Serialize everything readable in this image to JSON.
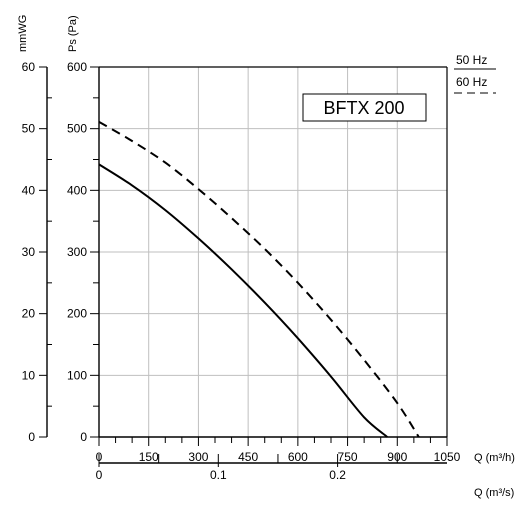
{
  "chart_data": {
    "type": "line",
    "model": "BFTX 200",
    "xlabel": "Q (m³/h)",
    "ylabel": "Ps (Pa)",
    "ylabel_secondary": "mmWG",
    "xlabel_secondary": "Q (m³/s)",
    "xlim": [
      0,
      1050
    ],
    "ylim": [
      0,
      600
    ],
    "ylim_secondary": [
      0,
      60
    ],
    "xlim_secondary": [
      0,
      0.2917
    ],
    "x_ticks": [
      "0",
      "150",
      "300",
      "450",
      "600",
      "750",
      "900",
      "1050"
    ],
    "y_ticks": [
      "0",
      "100",
      "200",
      "300",
      "400",
      "500",
      "600"
    ],
    "y_ticks_secondary": [
      "0",
      "10",
      "20",
      "30",
      "40",
      "50",
      "60"
    ],
    "x_ticks_secondary": [
      "0",
      "0.1",
      "0.2"
    ],
    "grid": true,
    "legend_position": "top-right",
    "series": [
      {
        "name": "50 Hz",
        "style": "solid",
        "x": [
          0,
          100,
          200,
          300,
          400,
          500,
          600,
          700,
          800,
          870
        ],
        "y": [
          442,
          408,
          368,
          322,
          272,
          218,
          160,
          98,
          32,
          0
        ]
      },
      {
        "name": "60 Hz",
        "style": "dashed",
        "x": [
          0,
          100,
          200,
          300,
          400,
          500,
          600,
          700,
          800,
          900,
          965
        ],
        "y": [
          511,
          480,
          445,
          402,
          355,
          305,
          250,
          190,
          125,
          55,
          0
        ]
      }
    ]
  }
}
